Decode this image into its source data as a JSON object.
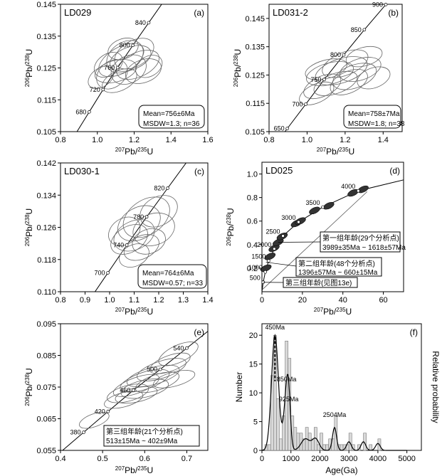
{
  "panels": [
    {
      "name": "panel-a",
      "label": "LD029",
      "letter": "(a)",
      "x_ticks": [
        "0.8",
        "1.0",
        "1.2",
        "1.4",
        "1.6"
      ],
      "y_ticks": [
        "0.145",
        "0.135",
        "0.125",
        "0.115",
        "0.105"
      ],
      "concordia_labels": [
        "840",
        "800",
        "760",
        "720",
        "680"
      ],
      "box_lines": [
        "Mean=756±6Ma",
        "MSDW=1.3; n=36"
      ]
    },
    {
      "name": "panel-b",
      "label": "LD031-2",
      "letter": "(b)",
      "x_ticks": [
        "0.8",
        "1.0",
        "1.2",
        "1.4"
      ],
      "y_ticks": [
        "0.145",
        "0.135",
        "0.125",
        "0.115",
        "0.105"
      ],
      "concordia_labels": [
        "900",
        "850",
        "800",
        "750",
        "700",
        "650"
      ],
      "box_lines": [
        "Mean=758±7Ma",
        "MSDW=1.8; n=38"
      ]
    },
    {
      "name": "panel-c",
      "label": "LD030-1",
      "letter": "(c)",
      "x_ticks": [
        "0.8",
        "0.9",
        "1.0",
        "1.1",
        "1.2",
        "1.3",
        "1.4"
      ],
      "y_ticks": [
        "0.142",
        "0.134",
        "0.126",
        "0.118",
        "0.110"
      ],
      "concordia_labels": [
        "820",
        "780",
        "740",
        "700"
      ],
      "box_lines": [
        "Mean=764±6Ma",
        "MSDW=0.57; n=33"
      ]
    },
    {
      "name": "panel-d",
      "label": "LD025",
      "letter": "(d)",
      "x_ticks": [
        "0",
        "20",
        "40",
        "60"
      ],
      "y_ticks": [
        "1.0",
        "0.8",
        "0.6",
        "0.4",
        "0.2"
      ],
      "concordia_labels": [
        "4000",
        "3500",
        "3000",
        "2500",
        "2000",
        "1500",
        "1000",
        "500"
      ],
      "annotations": [
        [
          "第一组年龄(29个分析点)",
          "3989±35Ma ~ 1618±57Ma"
        ],
        [
          "第二组年龄(48个分析点)",
          "1396±57Ma ~ 660±15Ma"
        ],
        [
          "第三组年龄(见图13e)"
        ]
      ]
    },
    {
      "name": "panel-e",
      "letter": "(e)",
      "x_ticks": [
        "0.4",
        "0.5",
        "0.6",
        "0.7"
      ],
      "y_ticks": [
        "0.095",
        "0.085",
        "0.075",
        "0.065",
        "0.055"
      ],
      "concordia_labels": [
        "540",
        "500",
        "460",
        "420",
        "380"
      ],
      "box_lines": [
        "第三组年龄(21个分析点)",
        "513±15Ma ~ 402±9Ma"
      ]
    },
    {
      "name": "panel-f",
      "letter": "(f)",
      "x_ticks": [
        "0",
        "1000",
        "2000",
        "3000",
        "4000",
        "5000"
      ],
      "y_ticks": [
        "0",
        "5",
        "10",
        "15",
        "20"
      ],
      "peak_labels": [
        "450Ma",
        "850Ma",
        "925Ma",
        "2504Ma"
      ]
    }
  ],
  "axis_labels": {
    "pb206_u238": "206Pb/238U",
    "pb207_u235": "207Pb/235U",
    "number": "Number",
    "relative_probability": "Relative probability",
    "age": "Age(Ga)"
  },
  "chart_data": [
    {
      "type": "scatter",
      "title": "LD029",
      "xlabel": "207Pb/235U",
      "ylabel": "206Pb/238U",
      "xlim": [
        0.8,
        1.6
      ],
      "ylim": [
        0.105,
        0.145
      ],
      "concordia": [
        {
          "age": 680,
          "x": 0.956,
          "y": 0.1112
        },
        {
          "age": 720,
          "x": 1.031,
          "y": 0.1182
        },
        {
          "age": 760,
          "x": 1.11,
          "y": 0.1251
        },
        {
          "age": 800,
          "x": 1.193,
          "y": 0.1321
        },
        {
          "age": 840,
          "x": 1.279,
          "y": 0.1392
        }
      ],
      "mean_age": "Mean=756±6Ma",
      "msdw": "MSDW=1.3; n=36"
    },
    {
      "type": "scatter",
      "title": "LD031-2",
      "xlabel": "207Pb/235U",
      "ylabel": "206Pb/238U",
      "xlim": [
        0.8,
        1.5
      ],
      "ylim": [
        0.105,
        0.15
      ],
      "concordia": [
        {
          "age": 650,
          "x": 0.896,
          "y": 0.1061
        },
        {
          "age": 700,
          "x": 0.993,
          "y": 0.1147
        },
        {
          "age": 750,
          "x": 1.09,
          "y": 0.1234
        },
        {
          "age": 800,
          "x": 1.193,
          "y": 0.1321
        },
        {
          "age": 850,
          "x": 1.301,
          "y": 0.141
        },
        {
          "age": 900,
          "x": 1.414,
          "y": 0.1499
        }
      ],
      "mean_age": "Mean=758±7Ma",
      "msdw": "MSDW=1.8; n=38"
    },
    {
      "type": "scatter",
      "title": "LD030-1",
      "xlabel": "207Pb/235U",
      "ylabel": "206Pb/238U",
      "xlim": [
        0.8,
        1.4
      ],
      "ylim": [
        0.11,
        0.142
      ],
      "concordia": [
        {
          "age": 700,
          "x": 0.993,
          "y": 0.1147
        },
        {
          "age": 740,
          "x": 1.07,
          "y": 0.1216
        },
        {
          "age": 780,
          "x": 1.151,
          "y": 0.1286
        },
        {
          "age": 820,
          "x": 1.236,
          "y": 0.1357
        }
      ],
      "mean_age": "Mean=764±6Ma",
      "msdw": "MSDW=0.57; n=33"
    },
    {
      "type": "scatter",
      "title": "LD025",
      "xlabel": "207Pb/235U",
      "ylabel": "206Pb/238U",
      "xlim": [
        0,
        70
      ],
      "ylim": [
        0,
        1.1
      ],
      "concordia": [
        {
          "age": 500,
          "x": 0.64,
          "y": 0.081
        },
        {
          "age": 1000,
          "x": 1.67,
          "y": 0.168
        },
        {
          "age": 1500,
          "x": 3.3,
          "y": 0.262
        },
        {
          "age": 2000,
          "x": 6.1,
          "y": 0.364
        },
        {
          "age": 2500,
          "x": 10.4,
          "y": 0.474
        },
        {
          "age": 3000,
          "x": 18.1,
          "y": 0.592
        },
        {
          "age": 3500,
          "x": 30.1,
          "y": 0.719
        },
        {
          "age": 4000,
          "x": 47.6,
          "y": 0.857
        }
      ]
    },
    {
      "type": "scatter",
      "title": "",
      "xlabel": "207Pb/235U",
      "ylabel": "206Pb/238U",
      "xlim": [
        0.4,
        0.75
      ],
      "ylim": [
        0.055,
        0.095
      ],
      "concordia": [
        {
          "age": 380,
          "x": 0.455,
          "y": 0.0607
        },
        {
          "age": 420,
          "x": 0.513,
          "y": 0.0673
        },
        {
          "age": 460,
          "x": 0.573,
          "y": 0.074
        },
        {
          "age": 500,
          "x": 0.637,
          "y": 0.0806
        },
        {
          "age": 540,
          "x": 0.7,
          "y": 0.0873
        }
      ]
    },
    {
      "type": "bar",
      "title": "",
      "xlabel": "Age(Ga)",
      "ylabel": "Number",
      "ylabel_right": "Relative probability",
      "xlim": [
        0,
        5500
      ],
      "ylim": [
        0,
        22
      ],
      "bin_width": 100,
      "bins": [
        {
          "x": 0,
          "count": 0
        },
        {
          "x": 100,
          "count": 1
        },
        {
          "x": 200,
          "count": 1
        },
        {
          "x": 300,
          "count": 13
        },
        {
          "x": 400,
          "count": 20
        },
        {
          "x": 500,
          "count": 9
        },
        {
          "x": 600,
          "count": 2
        },
        {
          "x": 700,
          "count": 6
        },
        {
          "x": 800,
          "count": 19
        },
        {
          "x": 900,
          "count": 16
        },
        {
          "x": 1000,
          "count": 6
        },
        {
          "x": 1100,
          "count": 4
        },
        {
          "x": 1200,
          "count": 3
        },
        {
          "x": 1300,
          "count": 3
        },
        {
          "x": 1400,
          "count": 2
        },
        {
          "x": 1500,
          "count": 4
        },
        {
          "x": 1600,
          "count": 3
        },
        {
          "x": 1700,
          "count": 2
        },
        {
          "x": 1800,
          "count": 4
        },
        {
          "x": 1900,
          "count": 1
        },
        {
          "x": 2000,
          "count": 3
        },
        {
          "x": 2100,
          "count": 1
        },
        {
          "x": 2200,
          "count": 1
        },
        {
          "x": 2300,
          "count": 2
        },
        {
          "x": 2400,
          "count": 2
        },
        {
          "x": 2500,
          "count": 6
        },
        {
          "x": 2600,
          "count": 1
        },
        {
          "x": 2700,
          "count": 1
        },
        {
          "x": 2800,
          "count": 1
        },
        {
          "x": 2900,
          "count": 1
        },
        {
          "x": 3000,
          "count": 3
        },
        {
          "x": 3100,
          "count": 1
        },
        {
          "x": 3300,
          "count": 1
        },
        {
          "x": 3500,
          "count": 3
        },
        {
          "x": 3700,
          "count": 1
        },
        {
          "x": 4000,
          "count": 2
        }
      ],
      "probability_peaks": [
        {
          "age": 450,
          "label": "450Ma"
        },
        {
          "age": 850,
          "label": "850Ma"
        },
        {
          "age": 925,
          "label": "925Ma"
        },
        {
          "age": 2504,
          "label": "2504Ma"
        }
      ]
    }
  ]
}
